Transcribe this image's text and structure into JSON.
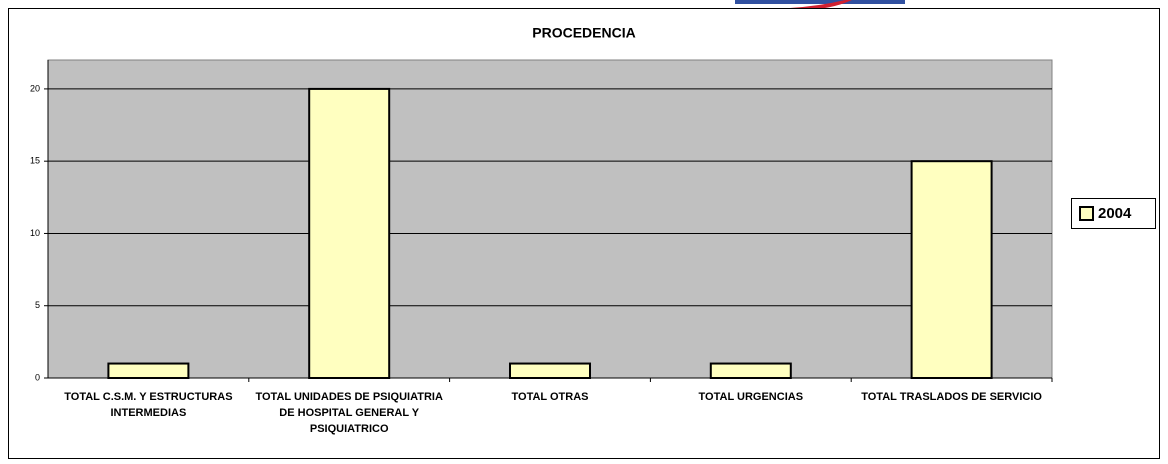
{
  "chart_data": {
    "type": "bar",
    "title": "PROCEDENCIA",
    "categories": [
      "TOTAL C.S.M. Y ESTRUCTURAS INTERMEDIAS",
      "TOTAL UNIDADES DE PSIQUIATRIA DE HOSPITAL GENERAL Y PSIQUIATRICO",
      "TOTAL OTRAS",
      "TOTAL URGENCIAS",
      "TOTAL TRASLADOS DE SERVICIO"
    ],
    "series": [
      {
        "name": "2004",
        "color": "#ffffc0",
        "values": [
          1,
          20,
          1,
          1,
          15
        ]
      }
    ],
    "ylim": [
      0,
      22
    ],
    "yticks": [
      0,
      5,
      10,
      15,
      20
    ],
    "grid": true,
    "legend": "right"
  }
}
